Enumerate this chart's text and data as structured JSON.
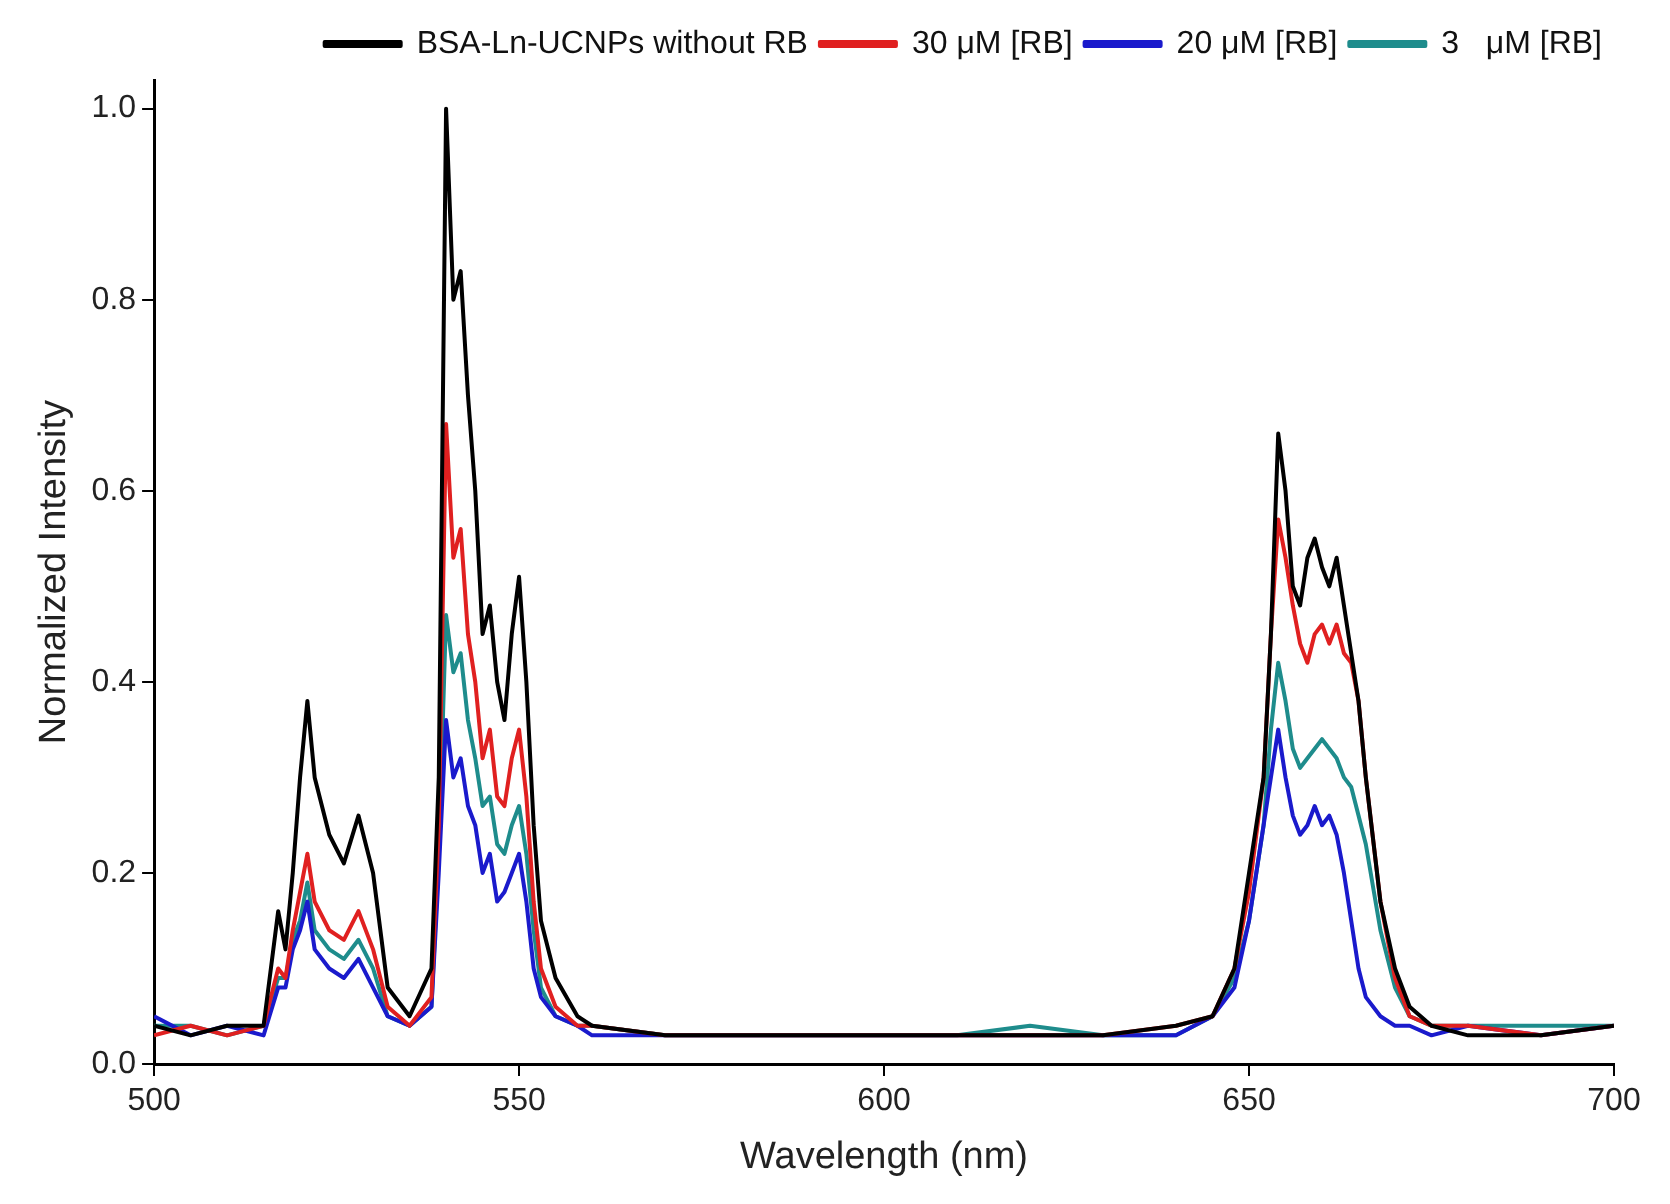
{
  "chart_data": {
    "type": "line",
    "xlabel": "Wavelength (nm)",
    "ylabel": "Normalized Intensity",
    "xlim": [
      500,
      700
    ],
    "ylim": [
      0,
      1.03
    ],
    "xticks": [
      500,
      550,
      600,
      650,
      700
    ],
    "yticks": [
      {
        "value": 0,
        "label": "0.0"
      },
      {
        "value": 0.2,
        "label": "0.2"
      },
      {
        "value": 0.4,
        "label": "0.4"
      },
      {
        "value": 0.6,
        "label": "0.6"
      },
      {
        "value": 0.8,
        "label": "0.8"
      },
      {
        "value": 1,
        "label": "1.0"
      }
    ],
    "grid": false,
    "legend": "top right",
    "marker": "none",
    "line_style": "solid",
    "x": [
      500,
      505,
      510,
      515,
      517,
      518,
      519,
      520,
      521,
      522,
      524,
      526,
      528,
      530,
      532,
      535,
      538,
      539,
      540,
      541,
      542,
      543,
      544,
      545,
      546,
      547,
      548,
      549,
      550,
      551,
      552,
      553,
      555,
      558,
      560,
      570,
      580,
      590,
      600,
      610,
      620,
      630,
      640,
      645,
      648,
      650,
      652,
      653,
      654,
      655,
      656,
      657,
      658,
      659,
      660,
      661,
      662,
      663,
      664,
      665,
      666,
      668,
      670,
      672,
      675,
      680,
      690,
      700
    ],
    "series": [
      {
        "name": "BSA-Ln-UCNPs without RB",
        "color": "#000000",
        "values": [
          0.04,
          0.03,
          0.04,
          0.04,
          0.16,
          0.12,
          0.2,
          0.3,
          0.38,
          0.3,
          0.24,
          0.21,
          0.26,
          0.2,
          0.08,
          0.05,
          0.1,
          0.3,
          1.0,
          0.8,
          0.83,
          0.7,
          0.6,
          0.45,
          0.48,
          0.4,
          0.36,
          0.45,
          0.51,
          0.4,
          0.25,
          0.15,
          0.09,
          0.05,
          0.04,
          0.03,
          0.03,
          0.03,
          0.03,
          0.03,
          0.03,
          0.03,
          0.04,
          0.05,
          0.1,
          0.2,
          0.3,
          0.45,
          0.66,
          0.6,
          0.5,
          0.48,
          0.53,
          0.55,
          0.52,
          0.5,
          0.53,
          0.48,
          0.43,
          0.38,
          0.3,
          0.17,
          0.1,
          0.06,
          0.04,
          0.03,
          0.03,
          0.04
        ]
      },
      {
        "name": "30 μM [RB]",
        "color": "#e02020",
        "values": [
          0.03,
          0.04,
          0.03,
          0.04,
          0.1,
          0.09,
          0.14,
          0.18,
          0.22,
          0.17,
          0.14,
          0.13,
          0.16,
          0.12,
          0.06,
          0.04,
          0.07,
          0.25,
          0.67,
          0.53,
          0.56,
          0.45,
          0.4,
          0.32,
          0.35,
          0.28,
          0.27,
          0.32,
          0.35,
          0.28,
          0.17,
          0.1,
          0.06,
          0.04,
          0.04,
          0.03,
          0.03,
          0.03,
          0.03,
          0.03,
          0.03,
          0.03,
          0.04,
          0.05,
          0.1,
          0.18,
          0.3,
          0.45,
          0.57,
          0.53,
          0.48,
          0.44,
          0.42,
          0.45,
          0.46,
          0.44,
          0.46,
          0.43,
          0.42,
          0.38,
          0.3,
          0.17,
          0.09,
          0.05,
          0.04,
          0.04,
          0.03,
          0.04
        ]
      },
      {
        "name": "20 μM [RB]",
        "color": "#1a1acc",
        "values": [
          0.05,
          0.03,
          0.04,
          0.03,
          0.08,
          0.08,
          0.12,
          0.14,
          0.17,
          0.12,
          0.1,
          0.09,
          0.11,
          0.08,
          0.05,
          0.04,
          0.06,
          0.2,
          0.36,
          0.3,
          0.32,
          0.27,
          0.25,
          0.2,
          0.22,
          0.17,
          0.18,
          0.2,
          0.22,
          0.17,
          0.1,
          0.07,
          0.05,
          0.04,
          0.03,
          0.03,
          0.03,
          0.03,
          0.03,
          0.03,
          0.03,
          0.03,
          0.03,
          0.05,
          0.08,
          0.15,
          0.25,
          0.3,
          0.35,
          0.3,
          0.26,
          0.24,
          0.25,
          0.27,
          0.25,
          0.26,
          0.24,
          0.2,
          0.15,
          0.1,
          0.07,
          0.05,
          0.04,
          0.04,
          0.03,
          0.04,
          0.03,
          0.04
        ]
      },
      {
        "name": "3   μM [RB]",
        "color": "#1e8c8c",
        "values": [
          0.04,
          0.04,
          0.03,
          0.04,
          0.09,
          0.09,
          0.13,
          0.15,
          0.19,
          0.14,
          0.12,
          0.11,
          0.13,
          0.1,
          0.05,
          0.04,
          0.06,
          0.22,
          0.47,
          0.41,
          0.43,
          0.36,
          0.32,
          0.27,
          0.28,
          0.23,
          0.22,
          0.25,
          0.27,
          0.22,
          0.14,
          0.08,
          0.05,
          0.04,
          0.04,
          0.03,
          0.03,
          0.03,
          0.03,
          0.03,
          0.04,
          0.03,
          0.03,
          0.05,
          0.09,
          0.15,
          0.25,
          0.35,
          0.42,
          0.38,
          0.33,
          0.31,
          0.32,
          0.33,
          0.34,
          0.33,
          0.32,
          0.3,
          0.29,
          0.26,
          0.23,
          0.14,
          0.08,
          0.05,
          0.04,
          0.04,
          0.04,
          0.04
        ]
      }
    ]
  }
}
